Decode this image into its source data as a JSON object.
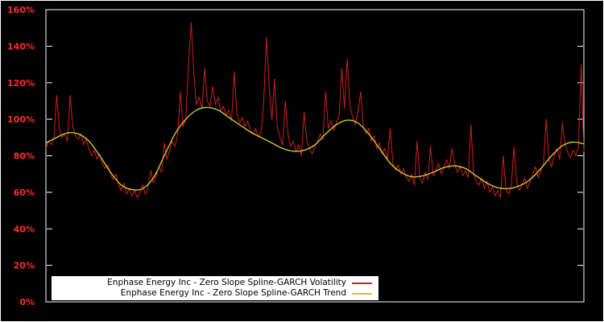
{
  "figure": {
    "background_color": "#000000",
    "border_color": "#ffffff"
  },
  "chart_data": {
    "type": "line",
    "title": "",
    "xlabel": "",
    "ylabel": "",
    "x_range": [
      0,
      100
    ],
    "ylim": [
      0,
      160
    ],
    "grid": false,
    "axis_frame_color": "#ffffff",
    "tick_label_color": "#ff2a2a",
    "y_tick_values": [
      0,
      20,
      40,
      60,
      80,
      100,
      120,
      140,
      160
    ],
    "y_tick_labels": [
      "0%",
      "20%",
      "40%",
      "60%",
      "80%",
      "100%",
      "120%",
      "140%",
      "160%"
    ],
    "x_tick_labels_visible": false,
    "legend": {
      "position": "bottom-left-inside",
      "background": "#ffffff",
      "text_color": "#000000"
    },
    "series": [
      {
        "name": "Enphase Energy Inc - Zero Slope Spline-GARCH Volatility",
        "color": "#cf1f1f",
        "smooth": false,
        "x_start": 0,
        "x_step": 0.5,
        "values": [
          84,
          88,
          86,
          90,
          113,
          95,
          90,
          92,
          88,
          113,
          96,
          91,
          89,
          92,
          86,
          89,
          84,
          80,
          83,
          78,
          81,
          76,
          73,
          75,
          70,
          67,
          70,
          64,
          61,
          65,
          59,
          62,
          58,
          61,
          57,
          60,
          64,
          59,
          63,
          72,
          65,
          69,
          74,
          71,
          87,
          78,
          83,
          88,
          85,
          92,
          115,
          96,
          100,
          130,
          153,
          125,
          108,
          112,
          106,
          128,
          110,
          107,
          118,
          108,
          112,
          104,
          107,
          102,
          105,
          99,
          126,
          103,
          98,
          101,
          96,
          99,
          94,
          92,
          95,
          90,
          93,
          110,
          145,
          118,
          100,
          122,
          96,
          90,
          86,
          110,
          92,
          85,
          88,
          82,
          86,
          80,
          104,
          88,
          84,
          81,
          85,
          88,
          92,
          89,
          115,
          95,
          99,
          94,
          98,
          102,
          128,
          106,
          133,
          108,
          101,
          97,
          104,
          115,
          96,
          92,
          95,
          88,
          91,
          84,
          87,
          81,
          84,
          78,
          95,
          76,
          72,
          75,
          70,
          73,
          68,
          66,
          70,
          64,
          88,
          68,
          65,
          71,
          67,
          85,
          69,
          72,
          76,
          70,
          74,
          78,
          73,
          84,
          75,
          71,
          74,
          69,
          72,
          68,
          97,
          70,
          66,
          64,
          68,
          62,
          66,
          60,
          63,
          58,
          61,
          57,
          80,
          62,
          59,
          63,
          85,
          66,
          61,
          64,
          68,
          62,
          66,
          70,
          74,
          68,
          72,
          76,
          100,
          78,
          74,
          80,
          84,
          78,
          98,
          86,
          82,
          79,
          83,
          80,
          85,
          130,
          82
        ]
      },
      {
        "name": "Enphase Energy Inc - Zero Slope Spline-GARCH Trend",
        "color": "#c8c832",
        "smooth": true,
        "x_start": 0,
        "x_step": 2,
        "values": [
          87,
          90,
          92.5,
          92,
          88,
          80,
          71,
          64,
          61.5,
          62,
          68,
          80,
          92,
          100,
          105,
          106.5,
          105,
          101,
          97,
          93,
          90,
          87,
          84,
          82.5,
          83,
          86,
          92,
          97,
          99.5,
          98,
          92,
          84,
          76,
          71,
          68.5,
          69,
          71,
          73.5,
          74.5,
          73,
          69,
          65,
          62.5,
          62,
          63.5,
          67,
          73,
          80,
          85.5,
          87.5,
          86.5
        ]
      }
    ]
  }
}
